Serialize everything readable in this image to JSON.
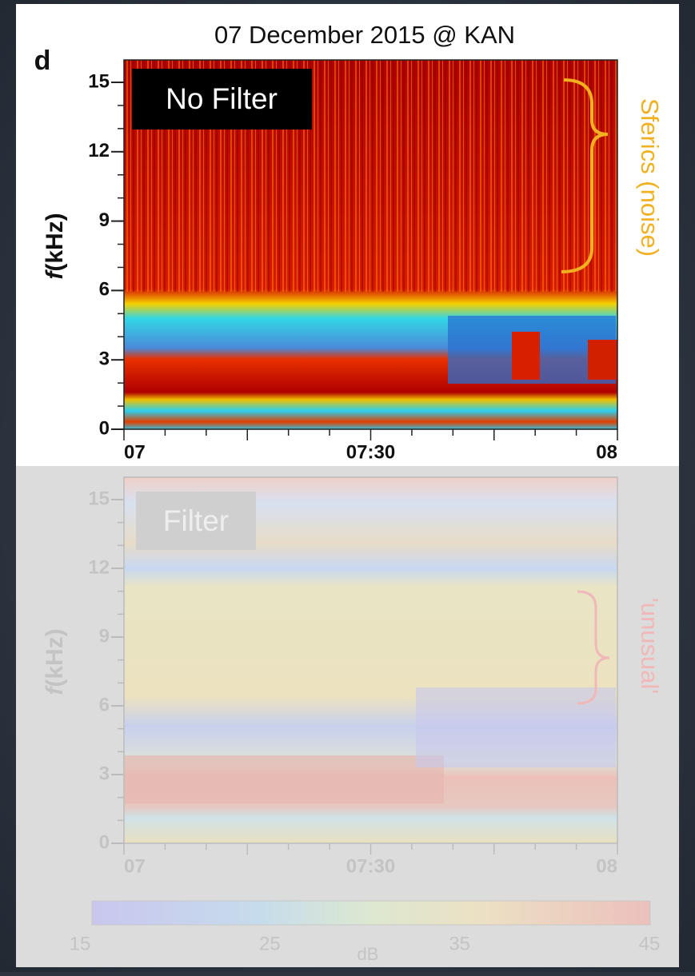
{
  "figure": {
    "panel_label": "d",
    "title": "07 December  2015 @ KAN",
    "top_panel": {
      "label": "No Filter",
      "annotation": "Sferics (noise)",
      "ylabel_symbol": "f",
      "ylabel_unit": "(kHz)",
      "yticks": [
        0,
        3,
        6,
        9,
        12,
        15
      ],
      "xticks": [
        "07",
        "07:30",
        "08"
      ]
    },
    "bottom_panel": {
      "label": "Filter",
      "annotation": "'unusual'",
      "ylabel_symbol": "f",
      "ylabel_unit": "(kHz)",
      "yticks": [
        0,
        3,
        6,
        9,
        12,
        15
      ],
      "xticks": [
        "07",
        "07:30",
        "08"
      ]
    },
    "colorbar": {
      "ticks": [
        15,
        25,
        35,
        45
      ],
      "label": "dB"
    }
  }
}
